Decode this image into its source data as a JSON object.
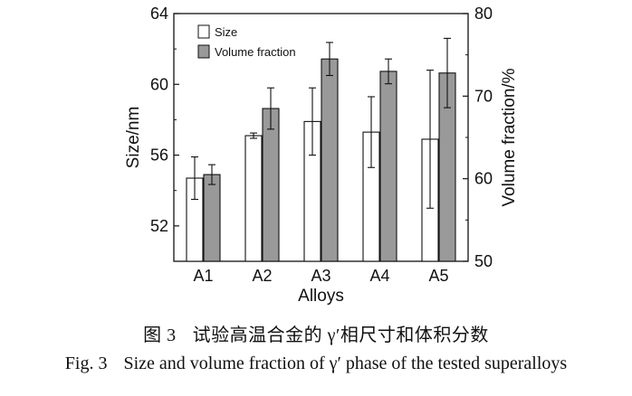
{
  "chart_data": {
    "type": "bar",
    "categories": [
      "A1",
      "A2",
      "A3",
      "A4",
      "A5"
    ],
    "xlabel": "Alloys",
    "ylabel_left": "Size/nm",
    "ylabel_right": "Volume fraction/%",
    "ylim_left": [
      50,
      64
    ],
    "ylim_right": [
      50,
      80
    ],
    "yticks_left": [
      52,
      56,
      60,
      64
    ],
    "yticks_right": [
      50,
      60,
      70,
      80
    ],
    "grid": false,
    "legend_position": "top-left",
    "series": [
      {
        "name": "Size",
        "axis": "left",
        "fill": "#ffffff",
        "values": [
          54.7,
          57.1,
          57.9,
          57.3,
          56.9
        ],
        "error": [
          1.2,
          0.15,
          1.9,
          2.0,
          3.9
        ]
      },
      {
        "name": "Volume fraction",
        "axis": "right",
        "fill": "#999999",
        "values": [
          60.5,
          68.5,
          74.5,
          73.0,
          72.8
        ],
        "error": [
          1.2,
          2.5,
          2.0,
          1.5,
          4.2
        ]
      }
    ]
  },
  "caption": {
    "cn_label": "图 3",
    "cn_text": "试验高温合金的 γ′相尺寸和体积分数",
    "en_label": "Fig. 3",
    "en_text": "Size and volume fraction of γ′ phase of the tested superalloys"
  }
}
